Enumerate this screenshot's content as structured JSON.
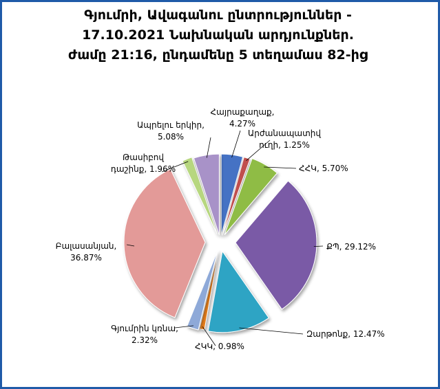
{
  "chart_data": {
    "type": "pie",
    "title_lines": [
      "Գյումրի, Ավագանու ընտրություններ -",
      "17.10.2021  Նախնական արդյունքներ.",
      "ժամը 21:16, ընդամենը 5 տեղամաս 82-ից"
    ],
    "unit": "%",
    "slices": [
      {
        "label_lines": [
          "Հայրաքաղաք,",
          "4.27%"
        ],
        "value": 4.27,
        "color": "#4472c4"
      },
      {
        "label_lines": [
          "Արժանապատիվ",
          "ուղի, 1.25%"
        ],
        "value": 1.25,
        "color": "#c0504d"
      },
      {
        "label_lines": [
          "ՀՀԿ, 5.70%"
        ],
        "value": 5.7,
        "color": "#8fbc45"
      },
      {
        "label_lines": [
          "ՔՊ, 29.12%"
        ],
        "value": 29.12,
        "color": "#7a5aa6"
      },
      {
        "label_lines": [
          "Զարթոնք, 12.47%"
        ],
        "value": 12.47,
        "color": "#2ea4c4"
      },
      {
        "label_lines": [
          "ՀԿԿ, 0.98%"
        ],
        "value": 0.98,
        "color": "#e8801e"
      },
      {
        "label_lines": [
          "Գյումրին կռնա,",
          "2.32%"
        ],
        "value": 2.32,
        "color": "#8ea9d8"
      },
      {
        "label_lines": [
          "Բալասանյան,",
          "36.87%"
        ],
        "value": 36.87,
        "color": "#e39a98"
      },
      {
        "label_lines": [
          "Թասիբով",
          "դաշինք, 1.96%"
        ],
        "value": 1.96,
        "color": "#b7d77f"
      },
      {
        "label_lines": [
          "Ապրելու երկիր,",
          "5.08%"
        ],
        "value": 5.08,
        "color": "#a892c8"
      }
    ]
  }
}
